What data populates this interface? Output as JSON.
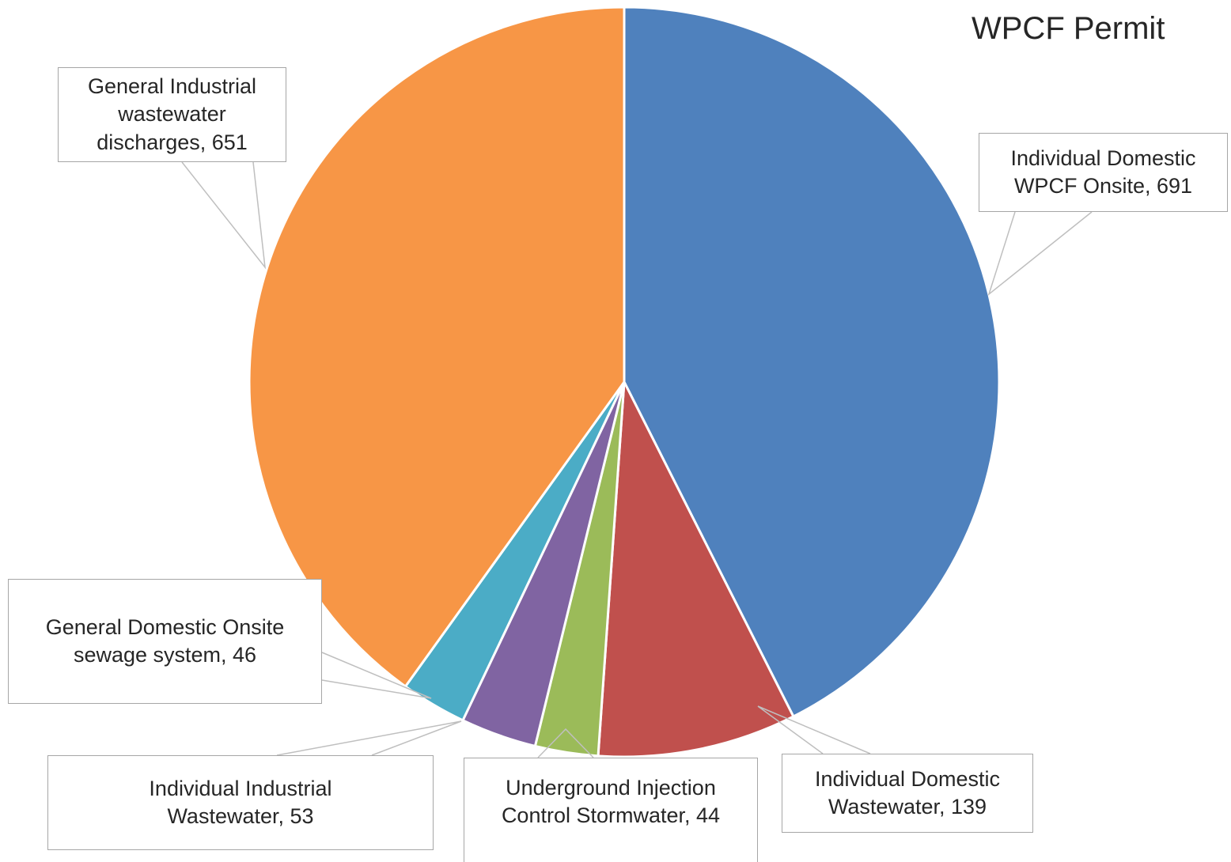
{
  "chart_data": {
    "type": "pie",
    "title": "WPCF Permit",
    "values": [
      691,
      139,
      44,
      53,
      46,
      651
    ],
    "value_labels": [
      "Individual Domestic WPCF Onsite, 691",
      "Individual Domestic Wastewater, 139",
      "Underground Injection Control Stormwater, 44",
      "Individual Industrial Wastewater, 53",
      "General Domestic Onsite sewage system, 46",
      "General Industrial wastewater discharges, 651"
    ],
    "colors": [
      "#4f81bd",
      "#c0504d",
      "#9bbb59",
      "#8064a2",
      "#4bacc6",
      "#f79646"
    ]
  }
}
